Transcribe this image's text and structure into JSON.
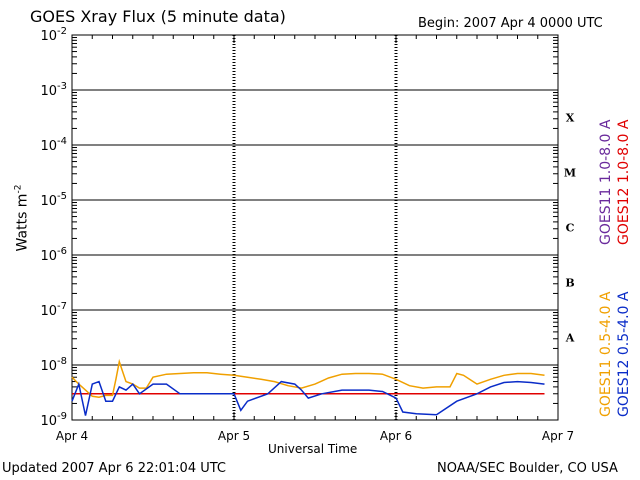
{
  "header": {
    "title": "GOES Xray Flux (5 minute data)",
    "begin": "Begin:  2007 Apr 4 0000 UTC"
  },
  "footer": {
    "updated": "Updated 2007 Apr  6 22:01:04 UTC",
    "credit": "NOAA/SEC Boulder, CO USA"
  },
  "colors": {
    "goes11_long": "#6a2a9c",
    "goes12_long": "#e00000",
    "goes11_short": "#f0a000",
    "goes12_short": "#0a2cc8"
  },
  "chart_data": {
    "type": "line",
    "xlabel": "Universal Time",
    "ylabel_base": "Watts m",
    "ylabel_exp": "-2",
    "y_scale": "log",
    "ylim": [
      1e-09,
      0.01
    ],
    "xlim": [
      "2007-04-04 00:00",
      "2007-04-07 00:00"
    ],
    "x_ticks": [
      "Apr 4",
      "Apr 5",
      "Apr 6",
      "Apr 7"
    ],
    "y_ticks": [
      {
        "base": "10",
        "exp": "-2",
        "value": 0.01
      },
      {
        "base": "10",
        "exp": "-3",
        "value": 0.001
      },
      {
        "base": "10",
        "exp": "-4",
        "value": 0.0001
      },
      {
        "base": "10",
        "exp": "-5",
        "value": 1e-05
      },
      {
        "base": "10",
        "exp": "-6",
        "value": 1e-06
      },
      {
        "base": "10",
        "exp": "-7",
        "value": 1e-07
      },
      {
        "base": "10",
        "exp": "-8",
        "value": 1e-08
      },
      {
        "base": "10",
        "exp": "-9",
        "value": 1e-09
      }
    ],
    "flare_classes": [
      "X",
      "M",
      "C",
      "B",
      "A"
    ],
    "grid": "horizontal lines at each decade; dashed vertical lines at day boundaries",
    "series": [
      {
        "name": "GOES11 1.0-8.0 A",
        "color_key": "goes11_long",
        "points": []
      },
      {
        "name": "GOES12 1.0-8.0 A",
        "color_key": "goes12_long",
        "points": [
          [
            "2007-04-04 00:00",
            3e-09
          ],
          [
            "2007-04-04 12:00",
            3e-09
          ],
          [
            "2007-04-05 00:00",
            3e-09
          ],
          [
            "2007-04-05 12:00",
            3e-09
          ],
          [
            "2007-04-06 00:00",
            3e-09
          ],
          [
            "2007-04-06 12:00",
            3e-09
          ],
          [
            "2007-04-06 22:00",
            3e-09
          ]
        ]
      },
      {
        "name": "GOES11 0.5-4.0 A",
        "color_key": "goes11_short",
        "points": [
          [
            "2007-04-04 00:00",
            6e-09
          ],
          [
            "2007-04-04 01:00",
            4.5e-09
          ],
          [
            "2007-04-04 02:00",
            3.5e-09
          ],
          [
            "2007-04-04 03:00",
            2.7e-09
          ],
          [
            "2007-04-04 04:00",
            2.6e-09
          ],
          [
            "2007-04-04 05:00",
            2.8e-09
          ],
          [
            "2007-04-04 06:00",
            2.8e-09
          ],
          [
            "2007-04-04 06:30",
            5.5e-09
          ],
          [
            "2007-04-04 07:00",
            1.15e-08
          ],
          [
            "2007-04-04 08:00",
            5e-09
          ],
          [
            "2007-04-04 09:00",
            4.5e-09
          ],
          [
            "2007-04-04 10:00",
            3.8e-09
          ],
          [
            "2007-04-04 11:00",
            3.8e-09
          ],
          [
            "2007-04-04 12:00",
            6e-09
          ],
          [
            "2007-04-04 14:00",
            6.8e-09
          ],
          [
            "2007-04-04 16:00",
            7e-09
          ],
          [
            "2007-04-04 18:00",
            7.2e-09
          ],
          [
            "2007-04-04 20:00",
            7.2e-09
          ],
          [
            "2007-04-04 22:00",
            6.8e-09
          ],
          [
            "2007-04-05 00:00",
            6.5e-09
          ],
          [
            "2007-04-05 02:00",
            6e-09
          ],
          [
            "2007-04-05 04:00",
            5.5e-09
          ],
          [
            "2007-04-05 06:00",
            5e-09
          ],
          [
            "2007-04-05 08:00",
            4.2e-09
          ],
          [
            "2007-04-05 10:00",
            3.8e-09
          ],
          [
            "2007-04-05 12:00",
            4.5e-09
          ],
          [
            "2007-04-05 14:00",
            5.8e-09
          ],
          [
            "2007-04-05 16:00",
            6.8e-09
          ],
          [
            "2007-04-05 18:00",
            7e-09
          ],
          [
            "2007-04-05 20:00",
            7e-09
          ],
          [
            "2007-04-05 22:00",
            6.8e-09
          ],
          [
            "2007-04-06 00:00",
            5.5e-09
          ],
          [
            "2007-04-06 02:00",
            4.2e-09
          ],
          [
            "2007-04-06 04:00",
            3.8e-09
          ],
          [
            "2007-04-06 06:00",
            4e-09
          ],
          [
            "2007-04-06 08:00",
            4e-09
          ],
          [
            "2007-04-06 09:00",
            7e-09
          ],
          [
            "2007-04-06 10:00",
            6.5e-09
          ],
          [
            "2007-04-06 12:00",
            4.5e-09
          ],
          [
            "2007-04-06 14:00",
            5.5e-09
          ],
          [
            "2007-04-06 16:00",
            6.5e-09
          ],
          [
            "2007-04-06 18:00",
            7e-09
          ],
          [
            "2007-04-06 20:00",
            7e-09
          ],
          [
            "2007-04-06 22:00",
            6.5e-09
          ]
        ]
      },
      {
        "name": "GOES12 0.5-4.0 A",
        "color_key": "goes12_short",
        "points": [
          [
            "2007-04-04 00:00",
            2.2e-09
          ],
          [
            "2007-04-04 01:00",
            4.5e-09
          ],
          [
            "2007-04-04 02:00",
            1.2e-09
          ],
          [
            "2007-04-04 03:00",
            4.5e-09
          ],
          [
            "2007-04-04 04:00",
            5e-09
          ],
          [
            "2007-04-04 05:00",
            2.2e-09
          ],
          [
            "2007-04-04 06:00",
            2.2e-09
          ],
          [
            "2007-04-04 07:00",
            4e-09
          ],
          [
            "2007-04-04 08:00",
            3.5e-09
          ],
          [
            "2007-04-04 09:00",
            4.5e-09
          ],
          [
            "2007-04-04 10:00",
            3e-09
          ],
          [
            "2007-04-04 12:00",
            4.5e-09
          ],
          [
            "2007-04-04 14:00",
            4.5e-09
          ],
          [
            "2007-04-04 16:00",
            3e-09
          ],
          [
            "2007-04-05 00:00",
            3e-09
          ],
          [
            "2007-04-05 01:00",
            1.5e-09
          ],
          [
            "2007-04-05 02:00",
            2.2e-09
          ],
          [
            "2007-04-05 05:00",
            3e-09
          ],
          [
            "2007-04-05 07:00",
            5e-09
          ],
          [
            "2007-04-05 09:00",
            4.5e-09
          ],
          [
            "2007-04-05 10:00",
            3.5e-09
          ],
          [
            "2007-04-05 11:00",
            2.5e-09
          ],
          [
            "2007-04-05 13:00",
            3e-09
          ],
          [
            "2007-04-05 16:00",
            3.5e-09
          ],
          [
            "2007-04-05 20:00",
            3.5e-09
          ],
          [
            "2007-04-05 22:00",
            3.3e-09
          ],
          [
            "2007-04-06 00:00",
            2.5e-09
          ],
          [
            "2007-04-06 01:00",
            1.4e-09
          ],
          [
            "2007-04-06 03:00",
            1.3e-09
          ],
          [
            "2007-04-06 06:00",
            1.25e-09
          ],
          [
            "2007-04-06 09:00",
            2.2e-09
          ],
          [
            "2007-04-06 12:00",
            3e-09
          ],
          [
            "2007-04-06 14:00",
            4e-09
          ],
          [
            "2007-04-06 16:00",
            4.8e-09
          ],
          [
            "2007-04-06 18:00",
            5e-09
          ],
          [
            "2007-04-06 20:00",
            4.8e-09
          ],
          [
            "2007-04-06 22:00",
            4.5e-09
          ]
        ]
      }
    ]
  }
}
